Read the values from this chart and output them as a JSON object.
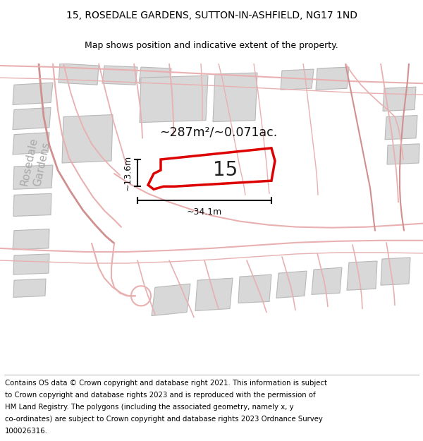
{
  "title_line1": "15, ROSEDALE GARDENS, SUTTON-IN-ASHFIELD, NG17 1ND",
  "title_line2": "Map shows position and indicative extent of the property.",
  "footer_lines": [
    "Contains OS data © Crown copyright and database right 2021. This information is subject",
    "to Crown copyright and database rights 2023 and is reproduced with the permission of",
    "HM Land Registry. The polygons (including the associated geometry, namely x, y",
    "co-ordinates) are subject to Crown copyright and database rights 2023 Ordnance Survey",
    "100026316."
  ],
  "title_fontsize": 10.0,
  "subtitle_fontsize": 9.0,
  "footer_fontsize": 7.3,
  "area_text": "~287m²/~0.071ac.",
  "dim1_text": "~13.6m",
  "dim2_text": "~34.1m",
  "property_label": "15",
  "road_color": "#e8b0b0",
  "road_color_dark": "#d09090",
  "building_fill": "#d8d8d8",
  "building_edge": "#b8b8b8",
  "property_outline_color": "#dd0000",
  "dim_line_color": "#111111",
  "map_bg": "#ffffff",
  "street_label_color": "#aaaaaa",
  "street_label_size": 11
}
